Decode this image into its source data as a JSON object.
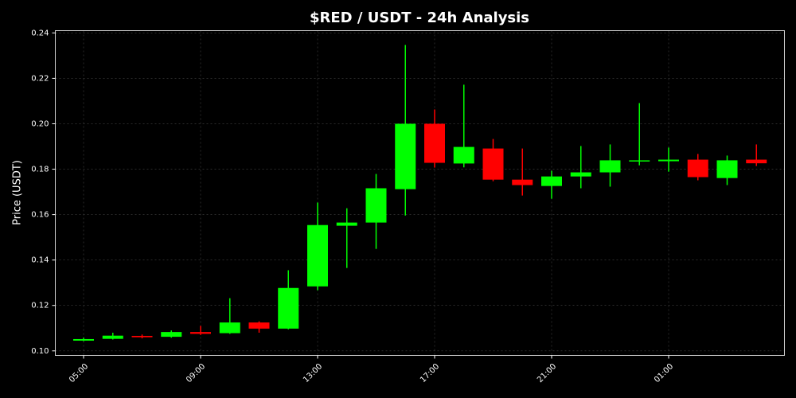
{
  "chart_data": {
    "type": "candlestick",
    "title": "$RED / USDT - 24h Analysis",
    "y_label": "Price (USDT)",
    "categories": [
      "05:00",
      null,
      null,
      null,
      "09:00",
      null,
      null,
      null,
      "13:00",
      null,
      null,
      null,
      "17:00",
      null,
      null,
      null,
      "21:00",
      null,
      null,
      null,
      "01:00",
      null,
      null,
      null
    ],
    "open": [
      0.1045,
      0.1053,
      0.1066,
      0.1062,
      0.1083,
      0.1078,
      0.1125,
      0.1098,
      0.1284,
      0.1551,
      0.1565,
      0.1712,
      0.2,
      0.1825,
      0.1891,
      0.1754,
      0.1726,
      0.1768,
      0.1786,
      0.1836,
      0.1835,
      0.1842,
      0.1761,
      0.1842
    ],
    "high": [
      0.1058,
      0.108,
      0.1072,
      0.109,
      0.111,
      0.1232,
      0.113,
      0.1355,
      0.1653,
      0.1628,
      0.1779,
      0.2347,
      0.2063,
      0.2172,
      0.1933,
      0.1891,
      0.1793,
      0.1902,
      0.1909,
      0.2091,
      0.1895,
      0.1867,
      0.186,
      0.1909
    ],
    "low": [
      0.1043,
      0.105,
      0.1055,
      0.1058,
      0.107,
      0.1075,
      0.108,
      0.1095,
      0.1267,
      0.1365,
      0.1449,
      0.1596,
      0.1807,
      0.1808,
      0.1747,
      0.1684,
      0.167,
      0.1716,
      0.1723,
      0.1817,
      0.1789,
      0.1751,
      0.173,
      0.1814
    ],
    "close": [
      0.1052,
      0.1067,
      0.106,
      0.1083,
      0.1075,
      0.1125,
      0.1098,
      0.1277,
      0.1554,
      0.1565,
      0.1716,
      0.2,
      0.1828,
      0.1898,
      0.1754,
      0.173,
      0.1768,
      0.1786,
      0.1839,
      0.1839,
      0.1842,
      0.1765,
      0.1839,
      0.1826
    ],
    "up_color": "#00ff00",
    "down_color": "#ff0000",
    "ylim": [
      0.098,
      0.241
    ],
    "yticks": [
      {
        "value": 0.1,
        "label": "0.10"
      },
      0.12,
      0.14,
      0.16,
      0.18,
      {
        "value": 0.2,
        "label": "0.20"
      },
      0.22,
      0.24
    ],
    "grid": true
  }
}
